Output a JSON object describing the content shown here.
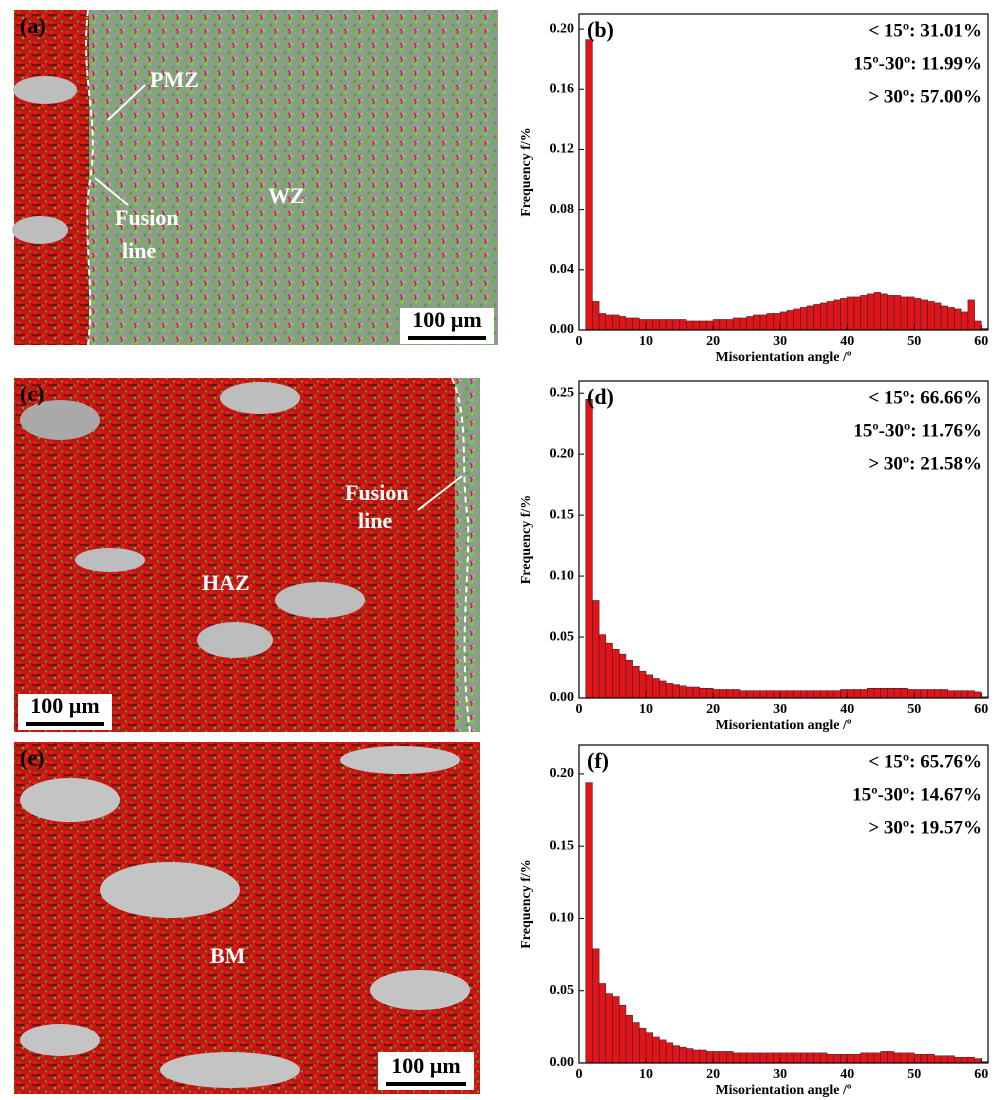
{
  "micrographs": [
    {
      "label": "(a)",
      "annotations": [
        "PMZ",
        "WZ",
        "Fusion",
        "line"
      ],
      "scale_bar": "100 µm"
    },
    {
      "label": "(c)",
      "annotations": [
        "Fusion",
        "line",
        "HAZ"
      ],
      "scale_bar": "100 µm"
    },
    {
      "label": "(e)",
      "annotations": [
        "BM"
      ],
      "scale_bar": "100 µm"
    }
  ],
  "chart_data": [
    {
      "type": "histogram",
      "panel": "(b)",
      "color": "#e0151b",
      "xlabel": "Misorientation angle /º",
      "ylabel": "Frequency f/%",
      "annotations": [
        "< 15º: 31.01%",
        "15º-30º: 11.99%",
        "> 30º:  57.00%"
      ],
      "bins": [
        1,
        2,
        3,
        4,
        5,
        6,
        7,
        8,
        9,
        10,
        11,
        12,
        13,
        14,
        15,
        16,
        17,
        18,
        19,
        20,
        21,
        22,
        23,
        24,
        25,
        26,
        27,
        28,
        29,
        30,
        31,
        32,
        33,
        34,
        35,
        36,
        37,
        38,
        39,
        40,
        41,
        42,
        43,
        44,
        45,
        46,
        47,
        48,
        49,
        50,
        51,
        52,
        53,
        54,
        55,
        56,
        57,
        58,
        59,
        60,
        61
      ],
      "values": [
        0.193,
        0.019,
        0.011,
        0.01,
        0.01,
        0.009,
        0.008,
        0.008,
        0.007,
        0.007,
        0.007,
        0.007,
        0.007,
        0.007,
        0.007,
        0.006,
        0.006,
        0.006,
        0.006,
        0.007,
        0.007,
        0.007,
        0.008,
        0.008,
        0.009,
        0.01,
        0.01,
        0.011,
        0.011,
        0.012,
        0.013,
        0.014,
        0.015,
        0.016,
        0.017,
        0.018,
        0.019,
        0.02,
        0.021,
        0.022,
        0.022,
        0.023,
        0.024,
        0.025,
        0.024,
        0.023,
        0.023,
        0.022,
        0.022,
        0.021,
        0.02,
        0.019,
        0.018,
        0.016,
        0.015,
        0.014,
        0.012,
        0.02,
        0.006,
        0.001
      ],
      "xlim": [
        0,
        61
      ],
      "xticks": [
        0,
        10,
        20,
        30,
        40,
        50,
        60
      ],
      "ylim": [
        0,
        0.21
      ],
      "yticks": [
        {
          "value": 0,
          "label": "0.00"
        },
        {
          "value": 0.04,
          "label": "0.04"
        },
        {
          "value": 0.08,
          "label": "0.08"
        },
        {
          "value": 0.12,
          "label": "0.12"
        },
        {
          "value": 0.16,
          "label": "0.16"
        },
        {
          "value": 0.2,
          "label": "0.20"
        }
      ]
    },
    {
      "type": "histogram",
      "panel": "(d)",
      "color": "#e0151b",
      "xlabel": "Misorientation angle /º",
      "ylabel": "Frequency f/%",
      "annotations": [
        "< 15º: 66.66%",
        "15º-30º: 11.76%",
        "> 30º:  21.58%"
      ],
      "bins": [
        1,
        2,
        3,
        4,
        5,
        6,
        7,
        8,
        9,
        10,
        11,
        12,
        13,
        14,
        15,
        16,
        17,
        18,
        19,
        20,
        21,
        22,
        23,
        24,
        25,
        26,
        27,
        28,
        29,
        30,
        31,
        32,
        33,
        34,
        35,
        36,
        37,
        38,
        39,
        40,
        41,
        42,
        43,
        44,
        45,
        46,
        47,
        48,
        49,
        50,
        51,
        52,
        53,
        54,
        55,
        56,
        57,
        58,
        59,
        60,
        61
      ],
      "values": [
        0.245,
        0.08,
        0.052,
        0.045,
        0.04,
        0.036,
        0.031,
        0.026,
        0.022,
        0.019,
        0.016,
        0.014,
        0.012,
        0.011,
        0.01,
        0.009,
        0.009,
        0.008,
        0.008,
        0.007,
        0.007,
        0.007,
        0.007,
        0.006,
        0.006,
        0.006,
        0.006,
        0.006,
        0.006,
        0.006,
        0.006,
        0.006,
        0.006,
        0.006,
        0.006,
        0.006,
        0.006,
        0.006,
        0.007,
        0.007,
        0.007,
        0.007,
        0.008,
        0.008,
        0.008,
        0.008,
        0.008,
        0.008,
        0.007,
        0.007,
        0.007,
        0.007,
        0.007,
        0.007,
        0.006,
        0.006,
        0.006,
        0.006,
        0.005,
        0.001
      ],
      "xlim": [
        0,
        61
      ],
      "xticks": [
        0,
        10,
        20,
        30,
        40,
        50,
        60
      ],
      "ylim": [
        0,
        0.26
      ],
      "yticks": [
        {
          "value": 0,
          "label": "0.00"
        },
        {
          "value": 0.05,
          "label": "0.05"
        },
        {
          "value": 0.1,
          "label": "0.10"
        },
        {
          "value": 0.15,
          "label": "0.15"
        },
        {
          "value": 0.2,
          "label": "0.20"
        },
        {
          "value": 0.25,
          "label": "0.25"
        }
      ]
    },
    {
      "type": "histogram",
      "panel": "(f)",
      "color": "#e0151b",
      "xlabel": "Misorientation angle /º",
      "ylabel": "Frequency f/%",
      "annotations": [
        "< 15º: 65.76%",
        "15º-30º: 14.67%",
        "> 30º:  19.57%"
      ],
      "bins": [
        1,
        2,
        3,
        4,
        5,
        6,
        7,
        8,
        9,
        10,
        11,
        12,
        13,
        14,
        15,
        16,
        17,
        18,
        19,
        20,
        21,
        22,
        23,
        24,
        25,
        26,
        27,
        28,
        29,
        30,
        31,
        32,
        33,
        34,
        35,
        36,
        37,
        38,
        39,
        40,
        41,
        42,
        43,
        44,
        45,
        46,
        47,
        48,
        49,
        50,
        51,
        52,
        53,
        54,
        55,
        56,
        57,
        58,
        59,
        60,
        61
      ],
      "values": [
        0.194,
        0.079,
        0.055,
        0.048,
        0.046,
        0.04,
        0.033,
        0.028,
        0.024,
        0.021,
        0.018,
        0.016,
        0.014,
        0.012,
        0.011,
        0.01,
        0.009,
        0.009,
        0.008,
        0.008,
        0.008,
        0.008,
        0.007,
        0.007,
        0.007,
        0.007,
        0.007,
        0.007,
        0.007,
        0.007,
        0.007,
        0.007,
        0.007,
        0.007,
        0.007,
        0.007,
        0.006,
        0.006,
        0.006,
        0.006,
        0.006,
        0.007,
        0.007,
        0.007,
        0.008,
        0.008,
        0.007,
        0.007,
        0.007,
        0.006,
        0.006,
        0.006,
        0.005,
        0.005,
        0.005,
        0.004,
        0.004,
        0.004,
        0.003,
        0.001
      ],
      "xlim": [
        0,
        61
      ],
      "xticks": [
        0,
        10,
        20,
        30,
        40,
        50,
        60
      ],
      "ylim": [
        0,
        0.22
      ],
      "yticks": [
        {
          "value": 0,
          "label": "0.00"
        },
        {
          "value": 0.05,
          "label": "0.05"
        },
        {
          "value": 0.1,
          "label": "0.10"
        },
        {
          "value": 0.15,
          "label": "0.15"
        },
        {
          "value": 0.2,
          "label": "0.20"
        }
      ]
    }
  ]
}
